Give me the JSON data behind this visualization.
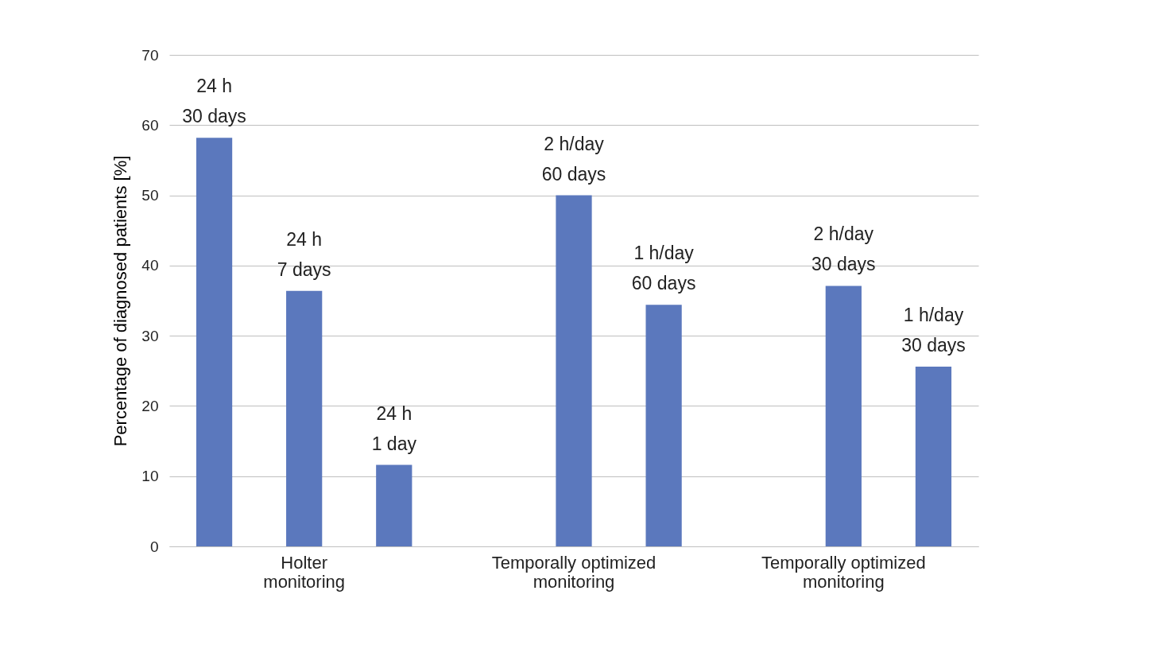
{
  "chart_data": {
    "type": "bar",
    "ylabel": "Percentage of diagnosed patients [%]",
    "categories": [
      "Holter monitoring",
      "Temporally optimized monitoring",
      "Temporally optimized monitoring"
    ],
    "series": [
      {
        "color": "#5b78bd",
        "values": [
          58.2,
          null,
          null
        ]
      },
      {
        "color": "#5b78bd",
        "values": [
          36.4,
          50,
          37.1
        ]
      },
      {
        "color": "#5b78bd",
        "values": [
          11.6,
          34.4,
          25.6
        ]
      }
    ],
    "annotations": [
      "24 h\n30 days",
      "24 h\n7 days",
      "24 h\n1 day",
      "2 h/day\n60 days",
      "1 h/day\n60 days",
      "2 h/day\n30 days",
      "1 h/day\n30 days"
    ],
    "ylim": [
      0,
      70
    ],
    "yticks": [
      0,
      10,
      20,
      30,
      40,
      50,
      60,
      70
    ],
    "grid": "y"
  }
}
